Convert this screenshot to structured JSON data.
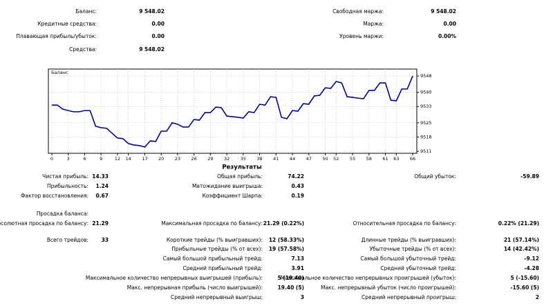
{
  "summary": {
    "left": [
      {
        "label": "Баланс:",
        "value": "9 548.02"
      },
      {
        "label": "Кредитные средства:",
        "value": "0.00"
      },
      {
        "label": "Плавающая прибыль/убыток:",
        "value": "0.00"
      },
      {
        "label": "Средства:",
        "value": "9 548.02"
      }
    ],
    "right": [
      {
        "label": "Свободная маржа:",
        "value": "9 548.02"
      },
      {
        "label": "Маржа:",
        "value": "0.00"
      },
      {
        "label": "Уровень маржи:",
        "value": "0.00%"
      }
    ]
  },
  "chart_data": {
    "type": "line",
    "title": "Баланс",
    "color": "#00008b",
    "grid": true,
    "x": [
      0,
      1,
      2,
      3,
      4,
      5,
      6,
      7,
      8,
      9,
      10,
      11,
      12,
      13,
      14,
      15,
      16,
      17,
      18,
      19,
      20,
      21,
      22,
      23,
      24,
      25,
      26,
      27,
      28,
      29,
      30,
      31,
      32,
      33,
      34,
      35,
      36,
      37,
      38,
      39,
      40,
      41,
      42,
      43,
      44,
      45,
      46,
      47,
      48,
      49,
      50,
      51,
      52,
      53,
      54,
      55,
      56,
      57,
      58,
      59,
      60,
      61,
      62,
      63,
      64,
      65,
      66
    ],
    "values": [
      9533.7,
      9533.7,
      9531.7,
      9531,
      9530.4,
      9530.4,
      9531,
      9531,
      9523.3,
      9522.6,
      9522.3,
      9519.9,
      9517.5,
      9517.2,
      9514.8,
      9514.1,
      9513.8,
      9513.1,
      9516.1,
      9515.8,
      9520.9,
      9520.9,
      9525,
      9524.3,
      9522.9,
      9522.9,
      9526.6,
      9526.3,
      9530,
      9530,
      9532.7,
      9532.4,
      9528.3,
      9528,
      9527.7,
      9527.3,
      9530.4,
      9530,
      9534.1,
      9533.7,
      9537.8,
      9537.5,
      9527.7,
      9527,
      9531,
      9530.7,
      9534.4,
      9534.1,
      9538.2,
      9538.5,
      9542.2,
      9541.9,
      9545.3,
      9544.6,
      9537.8,
      9537.5,
      9537.1,
      9536.8,
      9540.9,
      9540.9,
      9544.6,
      9544.6,
      9536.1,
      9535.8,
      9541.6,
      9541.6,
      9548
    ],
    "xlim": [
      -0.63,
      66.75
    ],
    "ylim": [
      9510,
      9551.4
    ],
    "xticks": [
      0,
      3,
      6,
      9,
      12,
      14,
      17,
      20,
      23,
      26,
      29,
      32,
      35,
      38,
      41,
      44,
      47,
      50,
      52,
      55,
      58,
      61,
      63,
      66
    ],
    "yticks": [
      9511,
      9518,
      9525,
      9533,
      9540,
      9548
    ]
  },
  "results": {
    "title": "Результаты",
    "items": [
      {
        "label": "Чистая прибыль:",
        "value": "14.33"
      },
      {
        "label": "Общая прибыль:",
        "value": "74.22"
      },
      {
        "label": "Общий убыток:",
        "value": "-59.89"
      },
      {
        "label": "Прибыльность:",
        "value": "1.24"
      },
      {
        "label": "Матожидание выигрыша:",
        "value": "0.43"
      },
      {
        "label": "Фактор восстановления:",
        "value": "0.67"
      },
      {
        "label": "Коэффициент Шарпа:",
        "value": "0.19"
      },
      {
        "label": "Просадка баланса:"
      },
      {
        "label": "Абсолютная просадка по балансу:",
        "value": "21.29"
      },
      {
        "label": "Максимальная просадка по балансу:",
        "value": "21.29 (0.22%)"
      },
      {
        "label": "Относительная просадка по балансу:",
        "value": "0.22% (21.29)"
      },
      {
        "label": "Всего трейдов:",
        "value": "33"
      },
      {
        "label": "Короткие трейды (% выигравших):",
        "value": "12 (58.33%)"
      },
      {
        "label": "Длинные трейды (% выигравших):",
        "value": "21 (57.14%)"
      },
      {
        "label": "Прибыльные трейды (% от всех):",
        "value": "19 (57.58%)"
      },
      {
        "label": "Убыточные трейды (% от всех):",
        "value": "14 (42.42%)"
      },
      {
        "label": "Самый большой прибыльный трейд:",
        "value": "7.13"
      },
      {
        "label": "Самый большой убыточный трейд:",
        "value": "-9.12"
      },
      {
        "label": "Средний прибыльный трейд:",
        "value": "3.91"
      },
      {
        "label": "Средний убыточный трейд:",
        "value": "-4.28"
      },
      {
        "label": "Максимальное количество непрерывных выигрышей (прибыль):",
        "value": "5 (19.40)"
      },
      {
        "label": "Максимальное количество непрерывных проигрышей (убыток):",
        "value": "5 (-15.60)"
      },
      {
        "label": "Макс. непрерывная прибыль (число выигрышей):",
        "value": "19.40 (5)"
      },
      {
        "label": "Макс. непрерывный убыток (число проигрышей):",
        "value": "-15.60 (5)"
      },
      {
        "label": "Средний непрерывный выигрыш:",
        "value": "3"
      },
      {
        "label": "Средний непрерывный проигрыш:",
        "value": "2"
      }
    ]
  }
}
